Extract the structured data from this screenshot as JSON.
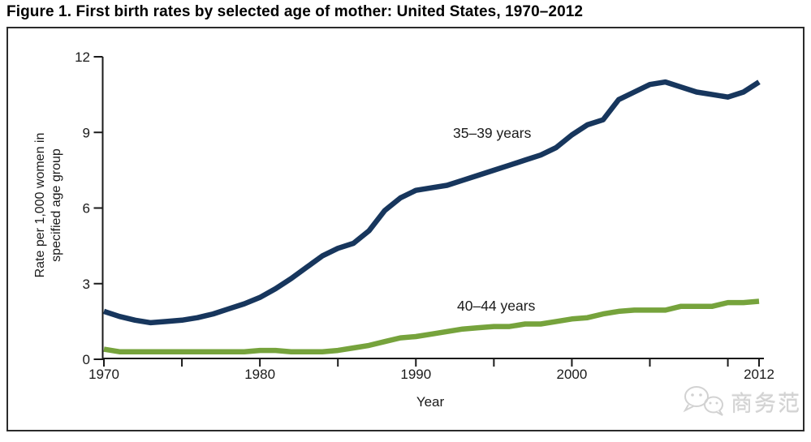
{
  "title": "Figure 1. First birth rates by selected age of mother: United States, 1970–2012",
  "watermark": {
    "icon": "chat-bubbles-logo",
    "text": "商务范"
  },
  "chart_data": {
    "type": "line",
    "title": "Figure 1. First birth rates by selected age of mother: United States, 1970–2012",
    "xlabel": "Year",
    "ylabel": "Rate per 1,000 women in specified age group",
    "ylabel_lines": [
      "Rate per 1,000 women in",
      "specified age group"
    ],
    "xlim": [
      1970,
      2012
    ],
    "ylim": [
      0,
      12
    ],
    "grid": false,
    "legend_position": "inline-labels",
    "axis_color": "#1a1a1a",
    "x_start": 1970,
    "x_ticks": [
      {
        "pos": 1970,
        "label": "1970"
      },
      {
        "pos": 1975,
        "label": ""
      },
      {
        "pos": 1980,
        "label": "1980"
      },
      {
        "pos": 1985,
        "label": ""
      },
      {
        "pos": 1990,
        "label": "1990"
      },
      {
        "pos": 1995,
        "label": ""
      },
      {
        "pos": 2000,
        "label": "2000"
      },
      {
        "pos": 2005,
        "label": ""
      },
      {
        "pos": 2010,
        "label": ""
      },
      {
        "pos": 2012,
        "label": "2012"
      }
    ],
    "y_ticks": [
      {
        "pos": 0,
        "label": "0"
      },
      {
        "pos": 3,
        "label": "3"
      },
      {
        "pos": 6,
        "label": "6"
      },
      {
        "pos": 9,
        "label": "9"
      },
      {
        "pos": 12,
        "label": "12"
      }
    ],
    "x": [
      1970,
      1971,
      1972,
      1973,
      1974,
      1975,
      1976,
      1977,
      1978,
      1979,
      1980,
      1981,
      1982,
      1983,
      1984,
      1985,
      1986,
      1987,
      1988,
      1989,
      1990,
      1991,
      1992,
      1993,
      1994,
      1995,
      1996,
      1997,
      1998,
      1999,
      2000,
      2001,
      2002,
      2003,
      2004,
      2005,
      2006,
      2007,
      2008,
      2009,
      2010,
      2011,
      2012
    ],
    "series": [
      {
        "name": "35–39 years",
        "color": "#17365D",
        "values": [
          1.9,
          1.7,
          1.55,
          1.45,
          1.5,
          1.55,
          1.65,
          1.8,
          2.0,
          2.2,
          2.45,
          2.8,
          3.2,
          3.65,
          4.1,
          4.4,
          4.6,
          5.1,
          5.9,
          6.4,
          6.7,
          6.8,
          6.9,
          7.1,
          7.3,
          7.5,
          7.7,
          7.9,
          8.1,
          8.4,
          8.9,
          9.3,
          9.5,
          10.3,
          10.6,
          10.9,
          11.0,
          10.8,
          10.6,
          10.5,
          10.4,
          10.6,
          11.0
        ]
      },
      {
        "name": "40–44 years",
        "color": "#76A33C",
        "values": [
          0.4,
          0.3,
          0.3,
          0.3,
          0.3,
          0.3,
          0.3,
          0.3,
          0.3,
          0.3,
          0.35,
          0.35,
          0.3,
          0.3,
          0.3,
          0.35,
          0.45,
          0.55,
          0.7,
          0.85,
          0.9,
          1.0,
          1.1,
          1.2,
          1.25,
          1.3,
          1.3,
          1.4,
          1.4,
          1.5,
          1.6,
          1.65,
          1.8,
          1.9,
          1.95,
          1.95,
          1.95,
          2.1,
          2.1,
          2.1,
          2.25,
          2.25,
          2.3
        ]
      }
    ]
  }
}
